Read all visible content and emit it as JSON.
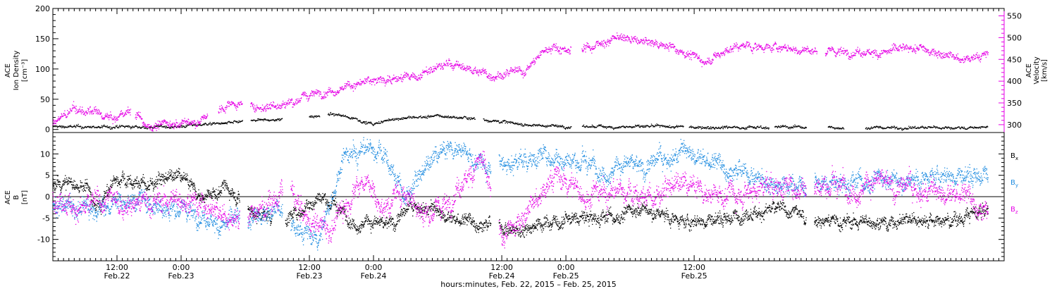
{
  "chart_data": [
    {
      "type": "scatter",
      "panel": "top",
      "ylabel_left": [
        "ACE",
        "Ion Density",
        "[cm⁻³]"
      ],
      "ylabel_right": [
        "ACE",
        "Velocity",
        "[km/s]"
      ],
      "ylim_left": [
        -5,
        200
      ],
      "ylim_right": [
        282,
        567
      ],
      "yticks_left": [
        0,
        50,
        100,
        150,
        200
      ],
      "yticks_right": [
        300,
        350,
        400,
        450,
        500,
        550
      ],
      "series": [
        {
          "key": "density",
          "axis": "left",
          "color": "#000000",
          "noise": 2.5,
          "density": 2,
          "x": [
            0,
            6,
            12,
            18,
            24,
            28,
            32,
            36,
            40,
            44,
            48,
            52,
            56,
            60,
            64,
            72,
            80,
            88,
            96,
            120,
            140,
            144,
            150,
            160,
            168,
            175
          ],
          "y": [
            5,
            4,
            4,
            4,
            5,
            9,
            10,
            13,
            15,
            17,
            21,
            25,
            20,
            8,
            18,
            22,
            18,
            8,
            5,
            4,
            4,
            3,
            3,
            3,
            3,
            3
          ],
          "gaps": [
            [
              35.5,
              37
            ],
            [
              43,
              48
            ],
            [
              50,
              51.5
            ],
            [
              79,
              80.5
            ],
            [
              97,
              99
            ],
            [
              118,
              119
            ],
            [
              134,
              135
            ],
            [
              141,
              145
            ],
            [
              148,
              152
            ]
          ]
        },
        {
          "key": "velocity",
          "axis": "right",
          "color": "#e600e6",
          "noise": 10,
          "density": 3,
          "x": [
            0,
            4,
            8,
            12,
            14,
            18,
            22,
            27,
            33,
            38,
            44,
            50,
            56,
            62,
            68,
            74,
            82,
            88,
            93,
            98,
            106,
            110,
            116,
            122,
            128,
            136,
            140,
            150,
            162,
            170,
            175
          ],
          "y": [
            305,
            335,
            325,
            310,
            335,
            298,
            300,
            305,
            347,
            340,
            350,
            375,
            390,
            405,
            410,
            440,
            415,
            420,
            480,
            470,
            500,
            490,
            480,
            445,
            480,
            478,
            470,
            465,
            475,
            450,
            460
          ],
          "gaps": [
            [
              14.6,
              15.4
            ],
            [
              29,
              31
            ],
            [
              35.5,
              37
            ],
            [
              97,
              99
            ],
            [
              143,
              144.5
            ]
          ]
        }
      ]
    },
    {
      "type": "scatter",
      "panel": "bottom",
      "ylabel_left": [
        "ACE",
        "B",
        "[nT]"
      ],
      "ylim": [
        -15,
        15
      ],
      "yticks": [
        -10,
        -5,
        0,
        5,
        10
      ],
      "legend_position": "right",
      "series": [
        {
          "key": "Bx",
          "name_main": "B",
          "name_sub": "x",
          "color": "#000000",
          "noise": 1.6,
          "density": 4,
          "x": [
            0,
            6,
            8,
            12,
            18,
            24,
            28,
            33,
            38,
            44,
            50,
            56,
            62,
            68,
            74,
            80,
            86,
            92,
            98,
            104,
            110,
            118,
            126,
            134,
            142,
            150,
            156,
            160,
            166,
            170,
            175
          ],
          "y": [
            3,
            3,
            -3,
            4,
            3,
            5,
            0,
            2,
            -4,
            -5,
            0,
            -5,
            -7,
            -2,
            -5,
            -6,
            -8,
            -6,
            -5,
            -5,
            -3,
            -6,
            -5,
            -3,
            -5,
            -6,
            -6,
            -5,
            -6,
            -5,
            -3
          ],
          "gaps": [
            [
              35,
              36.5
            ],
            [
              41,
              43.5
            ],
            [
              82,
              83.5
            ],
            [
              141,
              142.5
            ]
          ]
        },
        {
          "key": "By",
          "name_main": "B",
          "name_sub": "y",
          "color": "#1f8ce0",
          "noise": 2.2,
          "density": 4,
          "x": [
            0,
            6,
            12,
            18,
            24,
            28,
            32,
            38,
            42,
            46,
            50,
            54,
            58,
            62,
            66,
            72,
            76,
            80,
            86,
            92,
            98,
            104,
            110,
            118,
            124,
            130,
            136,
            142,
            148,
            156,
            160,
            166,
            170,
            175
          ],
          "y": [
            -2,
            -3,
            -1,
            -1,
            -3,
            -5,
            -6,
            -5,
            -3,
            -8,
            -10,
            8,
            11,
            10,
            0,
            10,
            12,
            7,
            8,
            10,
            8,
            7,
            7,
            10,
            8,
            5,
            3,
            3,
            3,
            4,
            3,
            5,
            5,
            5
          ],
          "gaps": [
            [
              35,
              36.5
            ],
            [
              43,
              44.5
            ],
            [
              82,
              83.5
            ],
            [
              141,
              142.5
            ]
          ]
        },
        {
          "key": "Bz",
          "name_main": "B",
          "name_sub": "z",
          "color": "#e600e6",
          "noise": 2.6,
          "density": 4,
          "x": [
            0,
            6,
            12,
            16,
            22,
            28,
            33,
            38,
            44,
            48,
            52,
            58,
            62,
            66,
            70,
            74,
            80,
            84,
            88,
            94,
            100,
            106,
            112,
            118,
            126,
            134,
            142,
            150,
            156,
            160,
            166,
            170,
            175
          ],
          "y": [
            0,
            -3,
            -1,
            -1,
            -1,
            -1,
            -5,
            -4,
            2,
            -6,
            -8,
            5,
            -3,
            2,
            -4,
            -2,
            10,
            -10,
            -5,
            5,
            0,
            1,
            0,
            3,
            0,
            3,
            2,
            3,
            3,
            2,
            0,
            1,
            -3
          ],
          "gaps": [
            [
              35,
              36.5
            ],
            [
              43,
              44.5
            ],
            [
              82,
              83.5
            ],
            [
              141,
              142.5
            ]
          ]
        }
      ]
    }
  ],
  "x_axis": {
    "xlim": [
      0,
      178
    ],
    "ticks": [
      {
        "pos": 12,
        "label": "12:00",
        "date": "Feb.22"
      },
      {
        "pos": 24,
        "label": "0:00",
        "date": "Feb.23"
      },
      {
        "pos": 48,
        "label": "12:00",
        "date": "Feb.23"
      },
      {
        "pos": 60,
        "label": "0:00",
        "date": "Feb.24"
      },
      {
        "pos": 84,
        "label": "12:00",
        "date": "Feb.24"
      },
      {
        "pos": 96,
        "label": "0:00",
        "date": "Feb.25"
      },
      {
        "pos": 120,
        "label": "12:00",
        "date": "Feb.25"
      }
    ],
    "xlabel": "hours:minutes, Feb. 22, 2015 – Feb. 25, 2015"
  }
}
